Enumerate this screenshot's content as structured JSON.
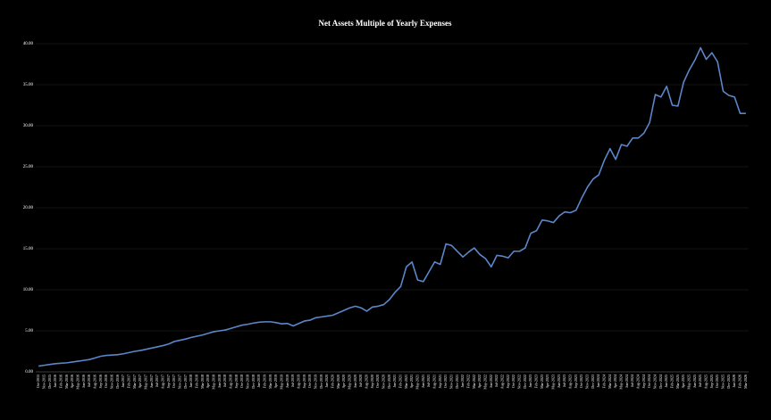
{
  "chart_data": {
    "type": "line",
    "title": "Net Assets Multiple of Yearly Expenses",
    "categories": [
      "Oct-2015",
      "Nov-2015",
      "Dec-2015",
      "Jan-2016",
      "Feb-2016",
      "Mar-2016",
      "Apr-2016",
      "May-2016",
      "Jun-2016",
      "Jul-2016",
      "Aug-2016",
      "Sep-2016",
      "Oct-2016",
      "Nov-2016",
      "Dec-2016",
      "Jan-2017",
      "Feb-2017",
      "Mar-2017",
      "Apr-2017",
      "May-2017",
      "Jun-2017",
      "Jul-2017",
      "Aug-2017",
      "Sep-2017",
      "Oct-2017",
      "Nov-2017",
      "Dec-2017",
      "Jan-2018",
      "Feb-2018",
      "Mar-2018",
      "Apr-2018",
      "May-2018",
      "Jun-2018",
      "Jul-2018",
      "Aug-2018",
      "Sep-2018",
      "Oct-2018",
      "Nov-2018",
      "Dec-2018",
      "Jan-2019",
      "Feb-2019",
      "Mar-2019",
      "Apr-2019",
      "May-2019",
      "Jun-2019",
      "Jul-2019",
      "Aug-2019",
      "Sep-2019",
      "Oct-2019",
      "Nov-2019",
      "Dec-2019",
      "Jan-2020",
      "Feb-2020",
      "Mar-2020",
      "Apr-2020",
      "May-2020",
      "Jun-2020",
      "Jul-2020",
      "Aug-2020",
      "Sep-2020",
      "Oct-2020",
      "Nov-2020",
      "Dec-2020",
      "Jan-2021",
      "Feb-2021",
      "Mar-2021",
      "Apr-2021",
      "May-2021",
      "Jun-2021",
      "Jul-2021",
      "Aug-2021",
      "Sep-2021",
      "Oct-2021",
      "Nov-2021",
      "Dec-2021",
      "Jan-2022",
      "Feb-2022",
      "Mar-2022",
      "Apr-2022",
      "May-2022",
      "Jun-2022",
      "Jul-2022",
      "Aug-2022",
      "Sep-2022",
      "Oct-2022",
      "Nov-2022",
      "Dec-2022",
      "Jan-2023",
      "Feb-2023",
      "Mar-2023",
      "Apr-2023",
      "May-2023",
      "Jun-2023",
      "Jul-2023",
      "Aug-2023",
      "Sep-2023",
      "Oct-2023",
      "Nov-2023",
      "Dec-2023",
      "Jan-2024",
      "Feb-2024",
      "Mar-2024",
      "Apr-2024",
      "May-2024",
      "Jun-2024",
      "Jul-2024",
      "Aug-2024",
      "Sep-2024",
      "Oct-2024",
      "Nov-2024",
      "Dec-2024",
      "Jan-2025",
      "Feb-2025",
      "Mar-2025",
      "Apr-2025",
      "May-2025",
      "Jun-2025",
      "Jul-2025",
      "Aug-2025",
      "Sep-2025",
      "Oct-2025",
      "Nov-2025",
      "Dec-2025",
      "Jan-2026",
      "Feb-2026",
      "Mar-2026"
    ],
    "values": [
      0.7,
      0.8,
      0.9,
      1.0,
      1.05,
      1.1,
      1.2,
      1.3,
      1.4,
      1.5,
      1.7,
      1.9,
      2.0,
      2.05,
      2.1,
      2.2,
      2.35,
      2.5,
      2.6,
      2.75,
      2.9,
      3.05,
      3.2,
      3.4,
      3.7,
      3.85,
      4.0,
      4.2,
      4.35,
      4.5,
      4.7,
      4.9,
      5.0,
      5.1,
      5.3,
      5.5,
      5.7,
      5.8,
      5.95,
      6.05,
      6.1,
      6.1,
      6.0,
      5.85,
      5.9,
      5.6,
      5.9,
      6.2,
      6.3,
      6.6,
      6.7,
      6.8,
      6.9,
      7.2,
      7.5,
      7.8,
      8.0,
      7.8,
      7.4,
      7.9,
      8.0,
      8.2,
      8.8,
      9.7,
      10.4,
      12.8,
      13.4,
      11.2,
      11.0,
      12.2,
      13.4,
      13.1,
      15.6,
      15.4,
      14.7,
      14.0,
      14.6,
      15.1,
      14.3,
      13.8,
      12.8,
      14.2,
      14.1,
      13.9,
      14.7,
      14.7,
      15.1,
      16.9,
      17.2,
      18.5,
      18.4,
      18.2,
      19.0,
      19.5,
      19.4,
      19.7,
      21.2,
      22.5,
      23.5,
      24.0,
      25.8,
      27.2,
      25.9,
      27.7,
      27.5,
      28.5,
      28.5,
      29.1,
      30.4,
      33.8,
      33.5,
      34.8,
      32.5,
      32.4,
      35.3,
      36.8,
      38.0,
      39.5,
      38.1,
      38.9,
      37.8,
      34.2,
      33.7,
      33.5,
      31.5,
      31.5
    ],
    "color": "#5b86c9",
    "ylim": [
      0,
      40
    ],
    "yticks": [
      {
        "value": 0,
        "label": "0.00"
      },
      {
        "value": 5,
        "label": "5.00"
      },
      {
        "value": 10,
        "label": "10.00"
      },
      {
        "value": 15,
        "label": "15.00"
      },
      {
        "value": 20,
        "label": "20.00"
      },
      {
        "value": 25,
        "label": "25.00"
      },
      {
        "value": 30,
        "label": "30.00"
      },
      {
        "value": 35,
        "label": "35.00"
      },
      {
        "value": 40,
        "label": "40.00"
      }
    ],
    "grid": true
  }
}
